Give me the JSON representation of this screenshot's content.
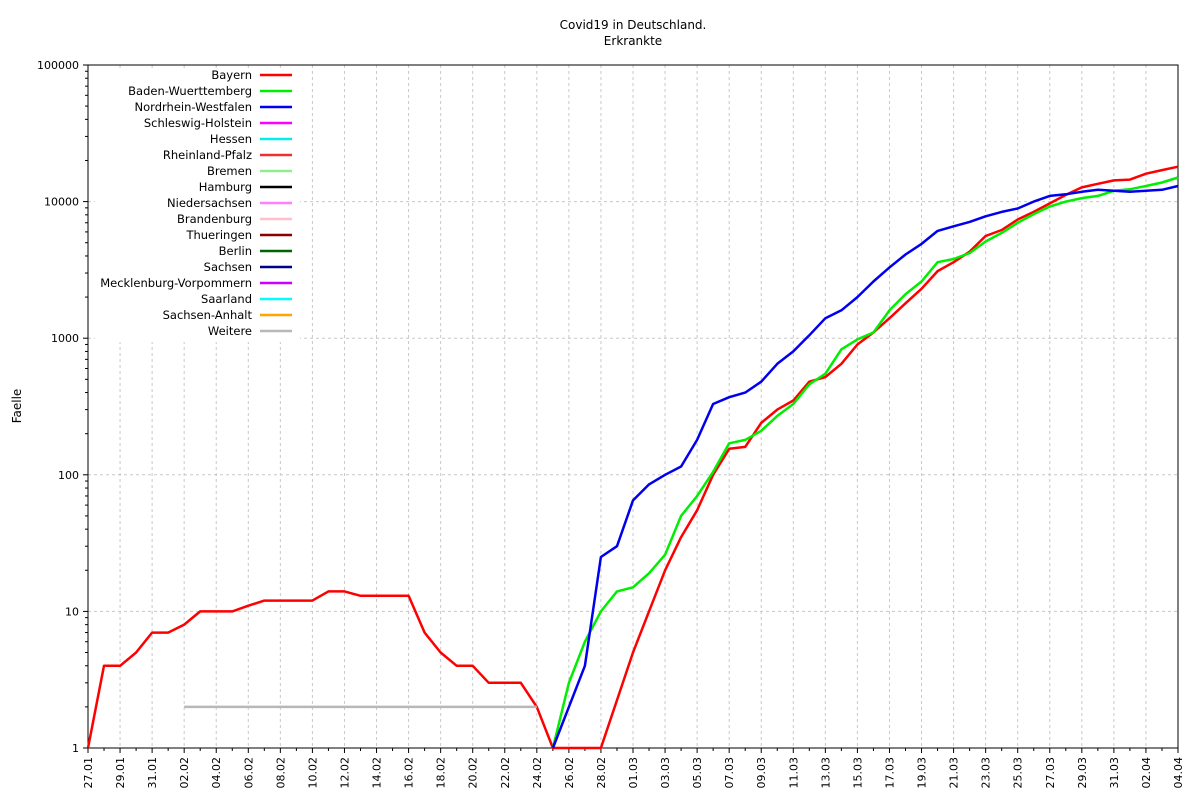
{
  "chart_data": {
    "type": "line",
    "title": "Covid19 in Deutschland.",
    "subtitle": "Erkrankte",
    "ylabel": "Faelle",
    "xlabel": "",
    "yscale": "log",
    "ylim": [
      1,
      100000
    ],
    "xlim": [
      0,
      68
    ],
    "grid": true,
    "legend_position": "top-left",
    "y_ticks": [
      1,
      10,
      100,
      1000,
      10000,
      100000
    ],
    "y_tick_labels": [
      "1",
      "10",
      "100",
      "1000",
      "10000",
      "100000"
    ],
    "x_tick_labels": [
      "27.01",
      "29.01",
      "31.01",
      "02.02",
      "04.02",
      "06.02",
      "08.02",
      "10.02",
      "12.02",
      "14.02",
      "16.02",
      "18.02",
      "20.02",
      "22.02",
      "24.02",
      "26.02",
      "28.02",
      "01.03",
      "03.03",
      "05.03",
      "07.03",
      "09.03",
      "11.03",
      "13.03",
      "15.03",
      "17.03",
      "19.03",
      "21.03",
      "23.03",
      "25.03",
      "27.03",
      "29.03",
      "31.03",
      "02.04",
      "04.04"
    ],
    "series": [
      {
        "name": "Bayern",
        "color": "#ff0000",
        "points": [
          [
            0,
            1
          ],
          [
            1,
            4
          ],
          [
            2,
            4
          ],
          [
            3,
            5
          ],
          [
            4,
            7
          ],
          [
            5,
            7
          ],
          [
            6,
            8
          ],
          [
            7,
            10
          ],
          [
            8,
            10
          ],
          [
            9,
            10
          ],
          [
            10,
            11
          ],
          [
            11,
            12
          ],
          [
            12,
            12
          ],
          [
            13,
            12
          ],
          [
            14,
            12
          ],
          [
            15,
            14
          ],
          [
            16,
            14
          ],
          [
            17,
            13
          ],
          [
            18,
            13
          ],
          [
            19,
            13
          ],
          [
            20,
            13
          ],
          [
            21,
            7
          ],
          [
            22,
            5
          ],
          [
            23,
            4
          ],
          [
            24,
            4
          ],
          [
            25,
            3
          ],
          [
            26,
            3
          ],
          [
            27,
            3
          ],
          [
            28,
            2
          ],
          [
            29,
            1
          ],
          [
            32,
            1
          ],
          [
            34,
            5
          ],
          [
            35,
            10
          ],
          [
            36,
            20
          ],
          [
            37,
            35
          ],
          [
            38,
            55
          ],
          [
            39,
            100
          ],
          [
            40,
            155
          ],
          [
            41,
            160
          ],
          [
            42,
            240
          ],
          [
            43,
            300
          ],
          [
            44,
            350
          ],
          [
            45,
            480
          ],
          [
            46,
            520
          ],
          [
            47,
            650
          ],
          [
            48,
            900
          ],
          [
            49,
            1100
          ],
          [
            50,
            1400
          ],
          [
            51,
            1800
          ],
          [
            52,
            2300
          ],
          [
            53,
            3100
          ],
          [
            54,
            3600
          ],
          [
            55,
            4300
          ],
          [
            56,
            5600
          ],
          [
            57,
            6200
          ],
          [
            58,
            7400
          ],
          [
            59,
            8400
          ],
          [
            60,
            9700
          ],
          [
            61,
            11200
          ],
          [
            62,
            12700
          ],
          [
            63,
            13500
          ],
          [
            64,
            14300
          ],
          [
            65,
            14500
          ],
          [
            66,
            16000
          ],
          [
            67,
            17000
          ],
          [
            68,
            18000
          ]
        ]
      },
      {
        "name": "Baden-Wuerttemberg",
        "color": "#00ee00",
        "points": [
          [
            29,
            1
          ],
          [
            30,
            3
          ],
          [
            31,
            6
          ],
          [
            32,
            10
          ],
          [
            33,
            14
          ],
          [
            34,
            15
          ],
          [
            35,
            19
          ],
          [
            36,
            26
          ],
          [
            37,
            50
          ],
          [
            38,
            70
          ],
          [
            39,
            105
          ],
          [
            40,
            170
          ],
          [
            41,
            180
          ],
          [
            42,
            210
          ],
          [
            43,
            270
          ],
          [
            44,
            330
          ],
          [
            45,
            460
          ],
          [
            46,
            550
          ],
          [
            47,
            830
          ],
          [
            48,
            980
          ],
          [
            49,
            1100
          ],
          [
            50,
            1600
          ],
          [
            51,
            2100
          ],
          [
            52,
            2600
          ],
          [
            53,
            3600
          ],
          [
            54,
            3800
          ],
          [
            55,
            4200
          ],
          [
            56,
            5100
          ],
          [
            57,
            5900
          ],
          [
            58,
            7000
          ],
          [
            59,
            8100
          ],
          [
            60,
            9200
          ],
          [
            61,
            10000
          ],
          [
            62,
            10600
          ],
          [
            63,
            11000
          ],
          [
            64,
            12000
          ],
          [
            65,
            12300
          ],
          [
            66,
            13000
          ],
          [
            67,
            13800
          ],
          [
            68,
            15000
          ]
        ]
      },
      {
        "name": "Nordrhein-Westfalen",
        "color": "#0000ee",
        "points": [
          [
            29,
            1
          ],
          [
            30,
            2
          ],
          [
            31,
            4
          ],
          [
            32,
            25
          ],
          [
            33,
            30
          ],
          [
            34,
            65
          ],
          [
            35,
            85
          ],
          [
            36,
            100
          ],
          [
            37,
            115
          ],
          [
            38,
            180
          ],
          [
            39,
            330
          ],
          [
            40,
            370
          ],
          [
            41,
            400
          ],
          [
            42,
            480
          ],
          [
            43,
            650
          ],
          [
            44,
            800
          ],
          [
            45,
            1050
          ],
          [
            46,
            1400
          ],
          [
            47,
            1600
          ],
          [
            48,
            2000
          ],
          [
            49,
            2600
          ],
          [
            50,
            3300
          ],
          [
            51,
            4100
          ],
          [
            52,
            4900
          ],
          [
            53,
            6100
          ],
          [
            54,
            6600
          ],
          [
            55,
            7100
          ],
          [
            56,
            7800
          ],
          [
            57,
            8400
          ],
          [
            58,
            8900
          ],
          [
            59,
            10000
          ],
          [
            60,
            11000
          ],
          [
            61,
            11300
          ],
          [
            62,
            11800
          ],
          [
            63,
            12200
          ],
          [
            64,
            12000
          ],
          [
            65,
            11800
          ],
          [
            66,
            12000
          ],
          [
            67,
            12200
          ],
          [
            68,
            13000
          ]
        ]
      },
      {
        "name": "Weitere",
        "color": "#b8b8b8",
        "points": [
          [
            6,
            2
          ],
          [
            28,
            2
          ]
        ]
      }
    ],
    "legend": [
      {
        "name": "Bayern",
        "color": "#ff0000"
      },
      {
        "name": "Baden-Wuerttemberg",
        "color": "#00ee00"
      },
      {
        "name": "Nordrhein-Westfalen",
        "color": "#0000ee"
      },
      {
        "name": "Schleswig-Holstein",
        "color": "#ff00ff"
      },
      {
        "name": "Hessen",
        "color": "#00f0f0"
      },
      {
        "name": "Rheinland-Pfalz",
        "color": "#ee3030"
      },
      {
        "name": "Bremen",
        "color": "#90ee90"
      },
      {
        "name": "Hamburg",
        "color": "#000000"
      },
      {
        "name": "Niedersachsen",
        "color": "#ff80ff"
      },
      {
        "name": "Brandenburg",
        "color": "#ffc0cb"
      },
      {
        "name": "Thueringen",
        "color": "#8b0000"
      },
      {
        "name": "Berlin",
        "color": "#006400"
      },
      {
        "name": "Sachsen",
        "color": "#00008b"
      },
      {
        "name": "Mecklenburg-Vorpommern",
        "color": "#cc00ff"
      },
      {
        "name": "Saarland",
        "color": "#00ffff"
      },
      {
        "name": "Sachsen-Anhalt",
        "color": "#ffa500"
      },
      {
        "name": "Weitere",
        "color": "#b8b8b8"
      }
    ]
  }
}
